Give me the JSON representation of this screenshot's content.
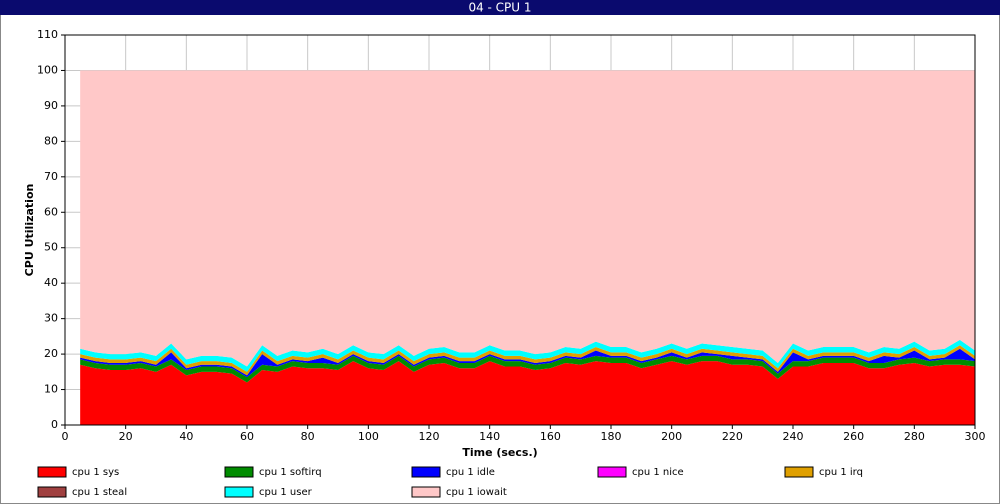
{
  "chart_data": {
    "type": "stacked-area",
    "title": "04 - CPU 1",
    "x_label": "Time (secs.)",
    "y_label": "CPU Utilization",
    "xlim": [
      0,
      300
    ],
    "xticks": [
      0,
      20,
      40,
      60,
      80,
      100,
      120,
      140,
      160,
      180,
      200,
      220,
      240,
      260,
      280,
      300
    ],
    "ylim": [
      0,
      110
    ],
    "yticks": [
      0,
      10,
      20,
      30,
      40,
      50,
      60,
      70,
      80,
      90,
      100,
      110
    ],
    "grid": true,
    "x": [
      5,
      10,
      15,
      20,
      25,
      30,
      35,
      40,
      45,
      50,
      55,
      60,
      65,
      70,
      75,
      80,
      85,
      90,
      95,
      100,
      105,
      110,
      115,
      120,
      125,
      130,
      135,
      140,
      145,
      150,
      155,
      160,
      165,
      170,
      175,
      180,
      185,
      190,
      195,
      200,
      205,
      210,
      215,
      220,
      225,
      230,
      235,
      240,
      245,
      250,
      255,
      260,
      265,
      270,
      275,
      280,
      285,
      290,
      295,
      300
    ],
    "series": [
      {
        "name": "cpu 1 sys",
        "color": "#ff0000",
        "values": [
          17,
          16,
          15.5,
          15.5,
          16,
          15,
          17,
          14,
          15,
          15,
          14.5,
          12,
          15.5,
          15,
          16.5,
          16,
          16,
          15.5,
          18,
          16,
          15.5,
          18,
          15,
          17,
          17.5,
          16,
          16,
          18,
          16.5,
          16.5,
          15.5,
          16,
          17.5,
          17,
          18,
          17.5,
          17.5,
          16,
          17,
          18,
          17,
          18,
          18,
          17,
          17,
          16.5,
          13,
          16.5,
          16.5,
          17.5,
          17.5,
          17.5,
          16,
          16,
          17,
          17.5,
          16.5,
          17,
          17,
          16.5
        ]
      },
      {
        "name": "cpu 1 softirq",
        "color": "#008c00",
        "values": [
          1.5,
          1.5,
          1.5,
          1.5,
          1.5,
          1.5,
          1.5,
          1.5,
          1.5,
          1.5,
          1.5,
          1.5,
          1.5,
          1.5,
          1.5,
          1.5,
          1.5,
          1.5,
          1.5,
          1.5,
          1.5,
          1.5,
          1.5,
          1.5,
          1.5,
          1.5,
          1.5,
          1.5,
          1.5,
          1.5,
          1.5,
          1.5,
          1.5,
          1.5,
          1.5,
          1.5,
          1.5,
          1.5,
          1.5,
          1.5,
          1.5,
          1.5,
          1.5,
          1.5,
          1.5,
          1.5,
          1.5,
          1.5,
          1.5,
          1.5,
          1.5,
          1.5,
          1.5,
          1.5,
          1.5,
          1.5,
          1.5,
          1.5,
          1.5,
          1.5
        ]
      },
      {
        "name": "cpu 1 idle",
        "color": "#0000ff",
        "values": [
          0.5,
          0.5,
          0.5,
          0.5,
          0.5,
          0.5,
          2,
          0.5,
          0.5,
          0.5,
          0.5,
          0.5,
          3,
          0.5,
          0.5,
          0.5,
          1.5,
          0.5,
          0.5,
          0.5,
          0.5,
          0.5,
          0.5,
          0.5,
          0.5,
          0.5,
          0.5,
          0.5,
          0.5,
          0.5,
          0.5,
          0.5,
          0.5,
          0.5,
          1.5,
          0.5,
          0.5,
          0.5,
          0.5,
          1,
          0.5,
          1,
          0.5,
          1,
          0.5,
          0.5,
          0.5,
          2.5,
          0.5,
          0.5,
          0.5,
          0.5,
          0.5,
          2,
          0.5,
          2,
          0.5,
          0.5,
          3,
          0.5
        ]
      },
      {
        "name": "cpu 1 nice",
        "color": "#ff00ff",
        "values": [
          0,
          0,
          0,
          0,
          0,
          0,
          0,
          0,
          0,
          0,
          0,
          0,
          0,
          0,
          0,
          0,
          0,
          0,
          0,
          0,
          0,
          0,
          0,
          0,
          0,
          0,
          0,
          0,
          0,
          0,
          0,
          0,
          0,
          0,
          0,
          0,
          0,
          0,
          0,
          0,
          0,
          0,
          0,
          0,
          0,
          0,
          0,
          0,
          0,
          0,
          0,
          0,
          0,
          0,
          0,
          0,
          0,
          0,
          0,
          0
        ]
      },
      {
        "name": "cpu 1 irq",
        "color": "#e0a000",
        "values": [
          1,
          1,
          1,
          1,
          1,
          1,
          1,
          1,
          1,
          1,
          1,
          1,
          1,
          1,
          1,
          1,
          1,
          1,
          1,
          1,
          1,
          1,
          1,
          1,
          1,
          1,
          1,
          1,
          1,
          1,
          1,
          1,
          1,
          1,
          1,
          1,
          1,
          1,
          1,
          1,
          1,
          1,
          1,
          1,
          1,
          1,
          1,
          1,
          1,
          1,
          1,
          1,
          1,
          1,
          1,
          1,
          1,
          1,
          1,
          1
        ]
      },
      {
        "name": "cpu 1 steal",
        "color": "#a04040",
        "values": [
          0,
          0,
          0,
          0,
          0,
          0,
          0,
          0,
          0,
          0,
          0,
          0,
          0,
          0,
          0,
          0,
          0,
          0,
          0,
          0,
          0,
          0,
          0,
          0,
          0,
          0,
          0,
          0,
          0,
          0,
          0,
          0,
          0,
          0,
          0,
          0,
          0,
          0,
          0,
          0,
          0,
          0,
          0,
          0,
          0,
          0,
          0,
          0,
          0,
          0,
          0,
          0,
          0,
          0,
          0,
          0,
          0,
          0,
          0,
          0
        ]
      },
      {
        "name": "cpu 1 user",
        "color": "#00ffff",
        "values": [
          1.5,
          1.5,
          1.5,
          1.5,
          1.5,
          1.5,
          1.5,
          1.5,
          1.5,
          1.5,
          1.5,
          1.5,
          1.5,
          1.5,
          1.5,
          1.5,
          1.5,
          1.5,
          1.5,
          1.5,
          1.5,
          1.5,
          1.5,
          1.5,
          1.5,
          1.5,
          1.5,
          1.5,
          1.5,
          1.5,
          1.5,
          1.5,
          1.5,
          1.5,
          1.5,
          1.5,
          1.5,
          1.5,
          1.5,
          1.5,
          1.5,
          1.5,
          1.5,
          1.5,
          1.5,
          1.5,
          1.5,
          1.5,
          1.5,
          1.5,
          1.5,
          1.5,
          1.5,
          1.5,
          1.5,
          1.5,
          1.5,
          1.5,
          1.5,
          1.5
        ]
      },
      {
        "name": "cpu 1 iowait",
        "color": "#ffc8c8",
        "values": [
          78.5,
          79.5,
          80,
          80,
          79.5,
          80.5,
          77,
          81.5,
          80.5,
          80.5,
          81,
          83.5,
          77.5,
          80.5,
          79,
          79.5,
          78.5,
          80,
          77.5,
          79.5,
          80,
          77.5,
          80.5,
          78.5,
          78,
          79.5,
          79.5,
          77.5,
          79,
          79,
          80,
          79.5,
          78,
          78.5,
          76.5,
          78,
          78,
          79.5,
          78.5,
          77,
          78.5,
          77,
          77.5,
          78,
          78.5,
          79,
          82.5,
          77,
          79,
          78,
          78,
          78,
          79.5,
          78,
          78.5,
          76.5,
          79,
          78.5,
          76,
          79
        ]
      }
    ]
  }
}
